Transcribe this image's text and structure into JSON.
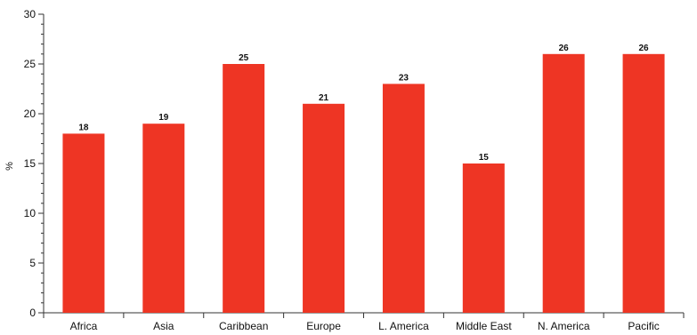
{
  "chart_data": {
    "type": "bar",
    "title": "",
    "xlabel": "",
    "ylabel": "%",
    "ylim": [
      0,
      30
    ],
    "yticks": [
      0,
      5,
      10,
      15,
      20,
      25,
      30
    ],
    "categories": [
      "Africa",
      "Asia",
      "Caribbean",
      "Europe",
      "L. America",
      "Middle East",
      "N. America",
      "Pacific"
    ],
    "values": [
      18,
      19,
      25,
      21,
      23,
      15,
      26,
      26
    ],
    "data_labels": [
      "18",
      "19",
      "25",
      "21",
      "23",
      "15",
      "26",
      "26"
    ],
    "grid": false,
    "legend": "none",
    "bar_color": "#ee3524",
    "axis_color": "#333333"
  }
}
